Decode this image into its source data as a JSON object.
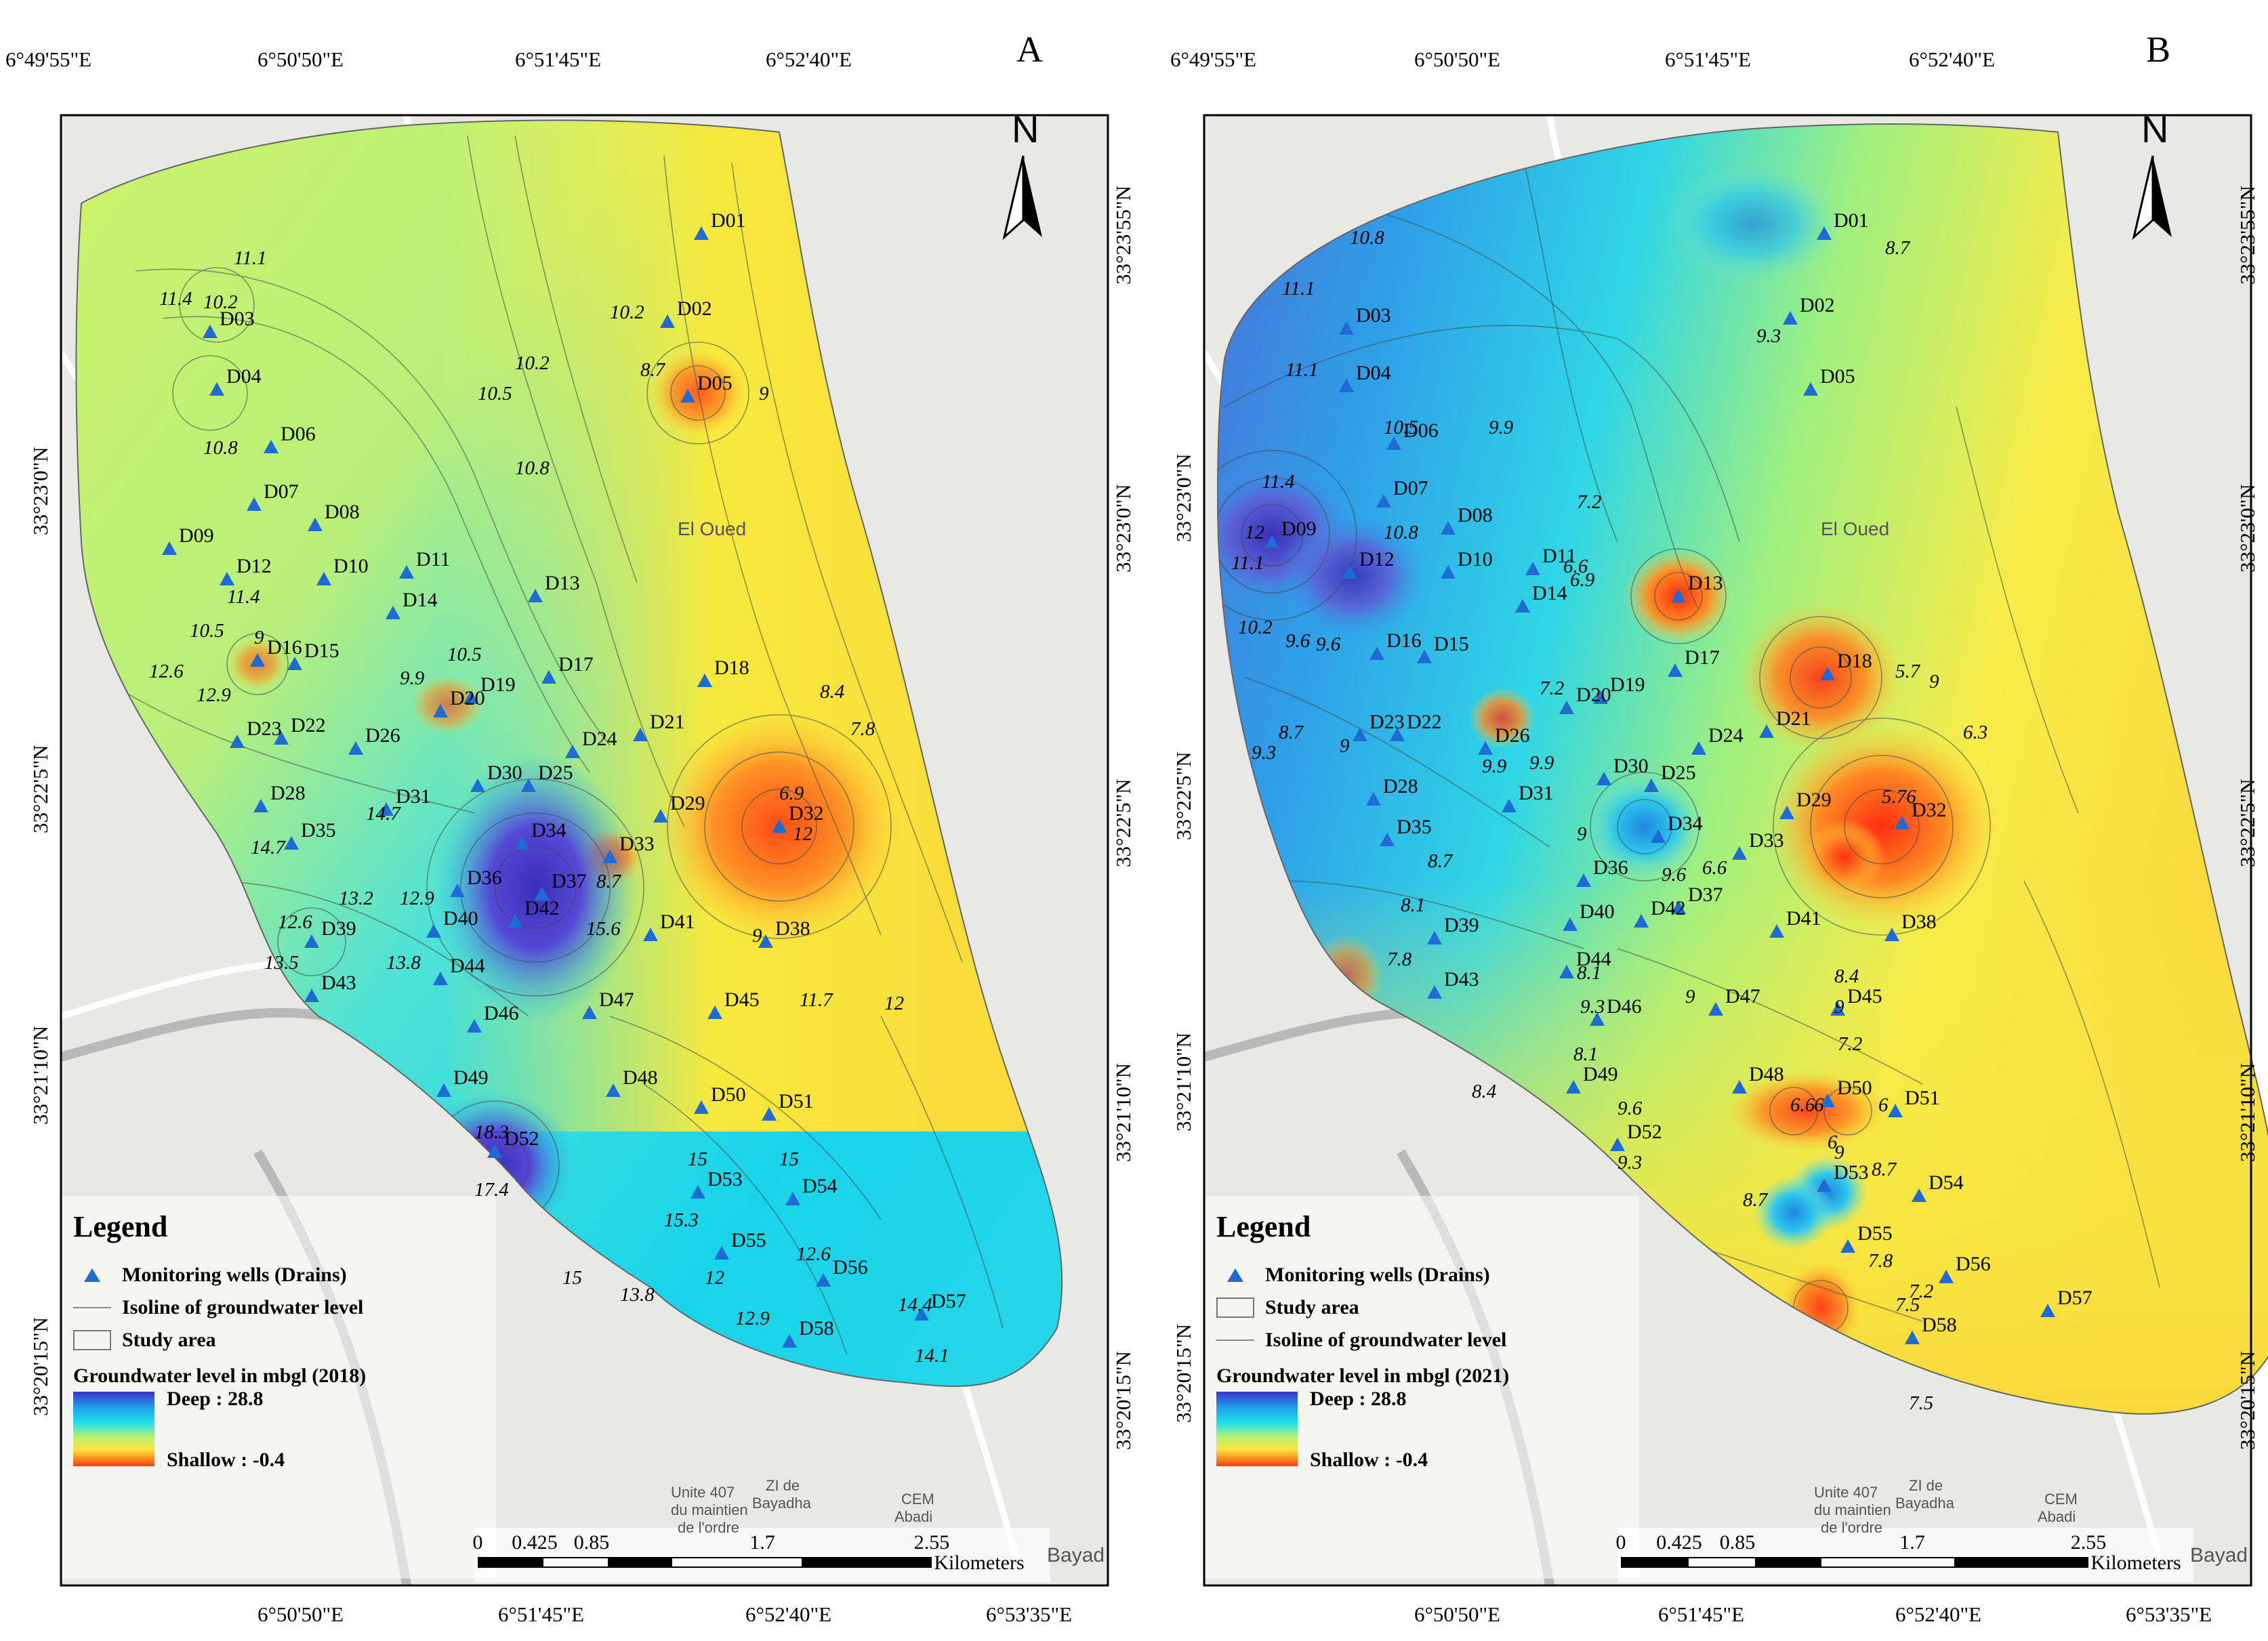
{
  "panels": [
    {
      "id": "A",
      "label": "A",
      "top_ticks": [
        "6°49'55\"E",
        "6°50'50\"E",
        "6°51'45\"E",
        "6°52'40\"E"
      ],
      "bottom_ticks": [
        "6°50'50\"E",
        "6°51'45\"E",
        "6°52'40\"E",
        "6°53'35\"E"
      ],
      "left_ticks": [
        "33°23'0\"N",
        "33°22'5\"N",
        "33°21'10\"N",
        "33°20'15\"N"
      ],
      "right_ticks": [
        "33°23'55\"N",
        "33°23'0\"N",
        "33°22'5\"N",
        "33°21'10\"N",
        "33°20'15\"N"
      ],
      "north": "N",
      "legend": {
        "title": "Legend",
        "items": [
          "Monitoring wells (Drains)",
          "Isoline of groundwater level",
          "Study area"
        ],
        "ramp_title": "Groundwater level in mbgl (2018)",
        "deep": "Deep : 28.8",
        "shallow": "Shallow : -0.4"
      },
      "scale": {
        "ticks": [
          "0",
          "0.425",
          "0.85",
          "1.7",
          "2.55"
        ],
        "unit": "Kilometers"
      },
      "basemap_text": [
        "Unite 407",
        "du maintien",
        "de l'ordre",
        "ZI de",
        "Bayadha",
        "CEM",
        "Abadi",
        "El Oued",
        "Bayad"
      ],
      "isolines": [
        "11.1",
        "11.4",
        "10.2",
        "10.8",
        "10.2",
        "8.7",
        "9",
        "10.5",
        "10.2",
        "10.8",
        "11.4",
        "10.5",
        "9",
        "12.6",
        "12.9",
        "10.5",
        "9.9",
        "8.4",
        "7.8",
        "6.9",
        "12",
        "8.7",
        "14.7",
        "14.7",
        "12.6",
        "13.2",
        "12.9",
        "13.5",
        "13.8",
        "15.6",
        "9",
        "11.7",
        "12",
        "18.3",
        "17.4",
        "15",
        "15",
        "15.3",
        "15",
        "13.8",
        "12",
        "12.6",
        "12.9",
        "14.4",
        "14.1"
      ]
    },
    {
      "id": "B",
      "label": "B",
      "top_ticks": [
        "6°49'55\"E",
        "6°50'50\"E",
        "6°51'45\"E",
        "6°52'40\"E"
      ],
      "bottom_ticks": [
        "6°50'50\"E",
        "6°51'45\"E",
        "6°52'40\"E",
        "6°53'35\"E"
      ],
      "left_ticks": [
        "33°23'0\"N",
        "33°22'5\"N",
        "33°21'10\"N",
        "33°20'15\"N"
      ],
      "right_ticks": [
        "33°23'55\"N",
        "33°23'0\"N",
        "33°22'5\"N",
        "33°21'10\"N",
        "33°20'15\"N"
      ],
      "north": "N",
      "legend": {
        "title": "Legend",
        "items": [
          "Monitoring wells (Drains)",
          "Study area",
          "Isoline of groundwater level"
        ],
        "ramp_title": "Groundwater level in mbgl (2021)",
        "deep": "Deep : 28.8",
        "shallow": "Shallow : -0.4"
      },
      "scale": {
        "ticks": [
          "0",
          "0.425",
          "0.85",
          "1.7",
          "2.55"
        ],
        "unit": "Kilometers"
      },
      "basemap_text": [
        "Unite 407",
        "du maintien",
        "de l'ordre",
        "ZI de",
        "Bayadha",
        "CEM",
        "Abadi",
        "El Oued",
        "Bayad"
      ],
      "isolines": [
        "10.8",
        "11.1",
        "11.1",
        "10.5",
        "9.9",
        "8.7",
        "9.3",
        "11.4",
        "12",
        "11.1",
        "10.8",
        "10.2",
        "9.6",
        "7.2",
        "6.6",
        "6.9",
        "9.6",
        "8.7",
        "9.3",
        "9",
        "9.9",
        "7.2",
        "9.9",
        "5.7",
        "9",
        "6.3",
        "5.76",
        "9.6",
        "9",
        "6.6",
        "8.7",
        "8.1",
        "7.8",
        "8.1",
        "9",
        "8.4",
        "9",
        "9.3",
        "8.1",
        "8.4",
        "9.6",
        "9.3",
        "6",
        "6.6",
        "7.2",
        "6",
        "6",
        "9",
        "8.7",
        "8.7",
        "7.8",
        "7.2",
        "7.5",
        "7.5"
      ]
    }
  ],
  "wells": [
    "D01",
    "D02",
    "D03",
    "D04",
    "D05",
    "D06",
    "D07",
    "D08",
    "D09",
    "D10",
    "D11",
    "D12",
    "D13",
    "D14",
    "D15",
    "D16",
    "D17",
    "D18",
    "D19",
    "D20",
    "D21",
    "D22",
    "D23",
    "D24",
    "D25",
    "D26",
    "D28",
    "D29",
    "D30",
    "D31",
    "D32",
    "D33",
    "D34",
    "D35",
    "D36",
    "D37",
    "D38",
    "D39",
    "D40",
    "D41",
    "D42",
    "D43",
    "D44",
    "D45",
    "D46",
    "D47",
    "D48",
    "D49",
    "D50",
    "D51",
    "D52",
    "D53",
    "D54",
    "D55",
    "D56",
    "D57",
    "D58"
  ],
  "colors": {
    "deep": "#3b35c9",
    "mid_blue": "#1ea3ec",
    "cyan": "#20e2e8",
    "green": "#bff26d",
    "yellow": "#fbe33e",
    "orange": "#ff7a16",
    "shallow": "#ff3b12",
    "well_marker": "#1e6bd6"
  }
}
